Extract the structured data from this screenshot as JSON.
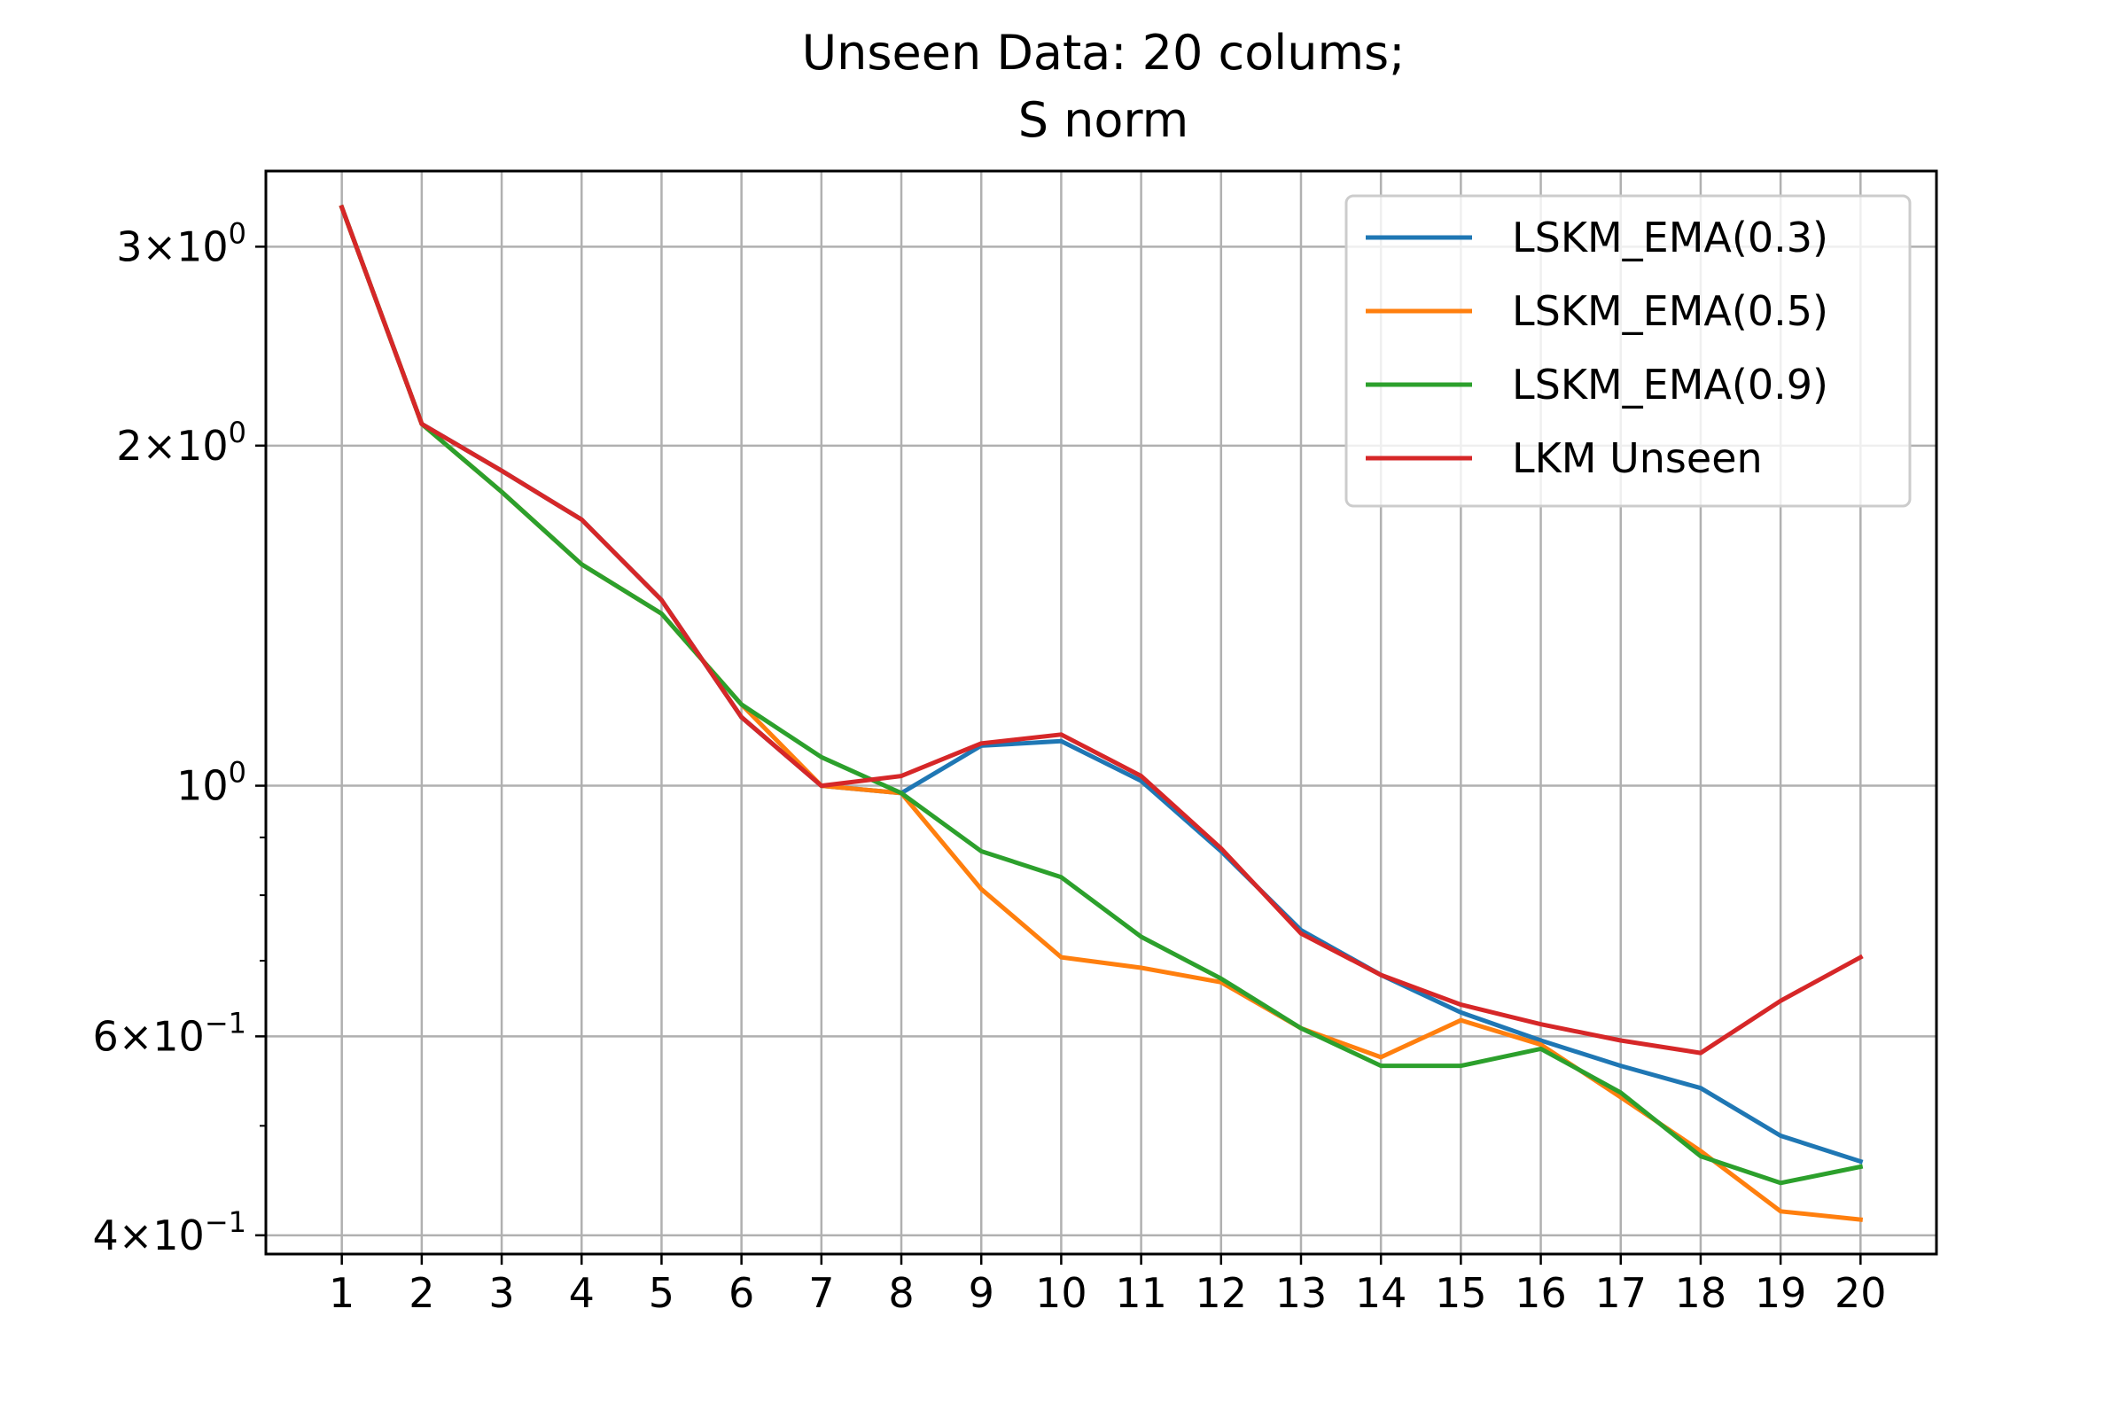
{
  "chart_data": {
    "type": "line",
    "title_line1": "Unseen Data: 20 colums;",
    "title_line2": "S norm",
    "xlabel": "",
    "ylabel": "",
    "y_scale": "log",
    "ylim": [
      0.385,
      3.5
    ],
    "xlim": [
      0.05,
      20.95
    ],
    "grid": true,
    "legend_position": "upper right",
    "x": [
      1,
      2,
      3,
      4,
      5,
      6,
      7,
      8,
      9,
      10,
      11,
      12,
      13,
      14,
      15,
      16,
      17,
      18,
      19,
      20
    ],
    "x_tick_labels": [
      "1",
      "2",
      "3",
      "4",
      "5",
      "6",
      "7",
      "8",
      "9",
      "10",
      "11",
      "12",
      "13",
      "14",
      "15",
      "16",
      "17",
      "18",
      "19",
      "20"
    ],
    "y_ticks": [
      {
        "value": 3,
        "mantissa": "3",
        "exponent": "0"
      },
      {
        "value": 2,
        "mantissa": "2",
        "exponent": "0"
      },
      {
        "value": 1,
        "mantissa": "",
        "exponent": "0"
      },
      {
        "value": 0.6,
        "mantissa": "6",
        "exponent": "−1"
      },
      {
        "value": 0.4,
        "mantissa": "4",
        "exponent": "−1"
      }
    ],
    "y_tick_base": "10",
    "y_tick_times": "×",
    "y_minor_ticks": [
      0.5,
      0.7,
      0.8,
      0.9
    ],
    "series": [
      {
        "name": "LSKM_EMA(0.3)",
        "color": "#1f77b4",
        "values": [
          3.25,
          2.09,
          1.9,
          1.72,
          1.46,
          1.15,
          1.0,
          0.985,
          1.085,
          1.095,
          1.01,
          0.875,
          0.745,
          0.68,
          0.63,
          0.595,
          0.565,
          0.54,
          0.49,
          0.465
        ]
      },
      {
        "name": "LSKM_EMA(0.5)",
        "color": "#ff7f0e",
        "values": [
          3.25,
          2.09,
          1.82,
          1.57,
          1.42,
          1.18,
          1.0,
          0.985,
          0.81,
          0.705,
          0.69,
          0.67,
          0.61,
          0.575,
          0.62,
          0.59,
          0.53,
          0.475,
          0.42,
          0.413
        ]
      },
      {
        "name": "LSKM_EMA(0.9)",
        "color": "#2ca02c",
        "values": [
          3.25,
          2.09,
          1.82,
          1.57,
          1.42,
          1.18,
          1.06,
          0.985,
          0.875,
          0.83,
          0.735,
          0.675,
          0.61,
          0.565,
          0.565,
          0.585,
          0.535,
          0.47,
          0.445,
          0.46
        ]
      },
      {
        "name": "LKM Unseen",
        "color": "#d62728",
        "values": [
          3.25,
          2.09,
          1.9,
          1.72,
          1.46,
          1.15,
          1.0,
          1.02,
          1.09,
          1.11,
          1.02,
          0.88,
          0.74,
          0.68,
          0.64,
          0.615,
          0.595,
          0.58,
          0.645,
          0.705
        ]
      }
    ]
  }
}
